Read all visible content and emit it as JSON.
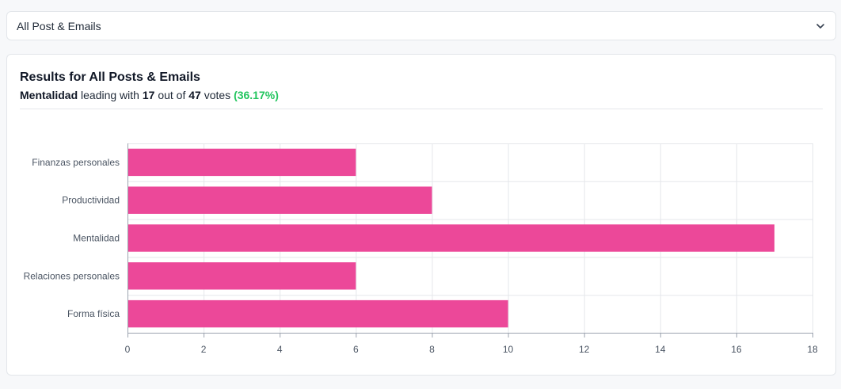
{
  "dropdown": {
    "selected": "All Post & Emails",
    "icon": "chevron-down-icon"
  },
  "card": {
    "title": "Results for All Posts & Emails",
    "summary": {
      "leader": "Mentalidad",
      "text_leading": "leading with",
      "leader_votes": "17",
      "text_out_of": "out of",
      "total_votes": "47",
      "text_votes": "votes",
      "percent": "(36.17%)"
    }
  },
  "colors": {
    "bar": "#ec4899",
    "percent": "#22c55e",
    "grid": "#e5e7eb",
    "axis": "#9ca3af"
  },
  "chart_data": {
    "type": "bar",
    "orientation": "horizontal",
    "categories": [
      "Finanzas personales",
      "Productividad",
      "Mentalidad",
      "Relaciones personales",
      "Forma física"
    ],
    "values": [
      6,
      8,
      17,
      6,
      10
    ],
    "xlim": [
      0,
      18
    ],
    "xticks": [
      0,
      2,
      4,
      6,
      8,
      10,
      12,
      14,
      16,
      18
    ],
    "grid": true,
    "legend": "none",
    "title": "",
    "xlabel": "",
    "ylabel": ""
  }
}
